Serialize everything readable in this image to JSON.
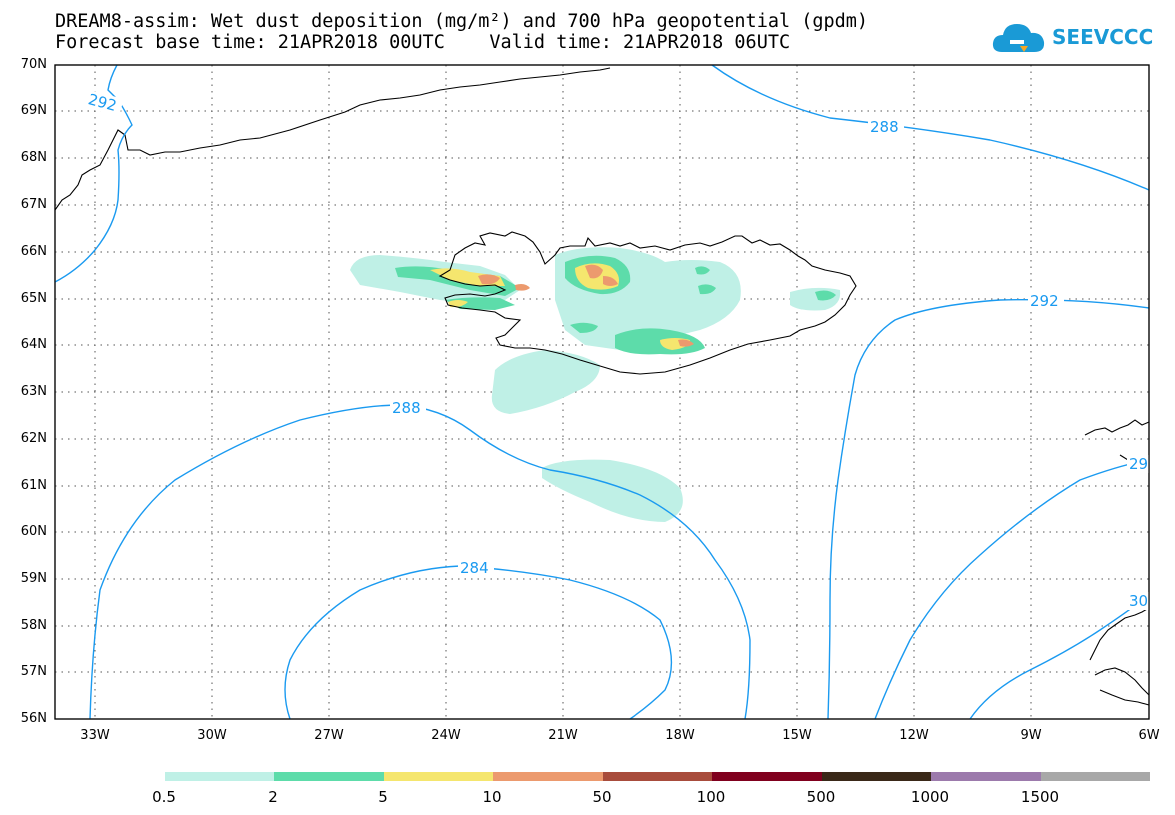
{
  "title_line1": "DREAM8-assim: Wet dust deposition (mg/m²) and 700 hPa geopotential (gpdm)",
  "title_line2": "Forecast base time: 21APR2018 00UTC    Valid time: 21APR2018 06UTC",
  "logo_text": "SEEVCCC",
  "logo_colors": {
    "primary": "#1a9ad6",
    "accent": "#f5a623"
  },
  "lat_labels": [
    "70N",
    "69N",
    "68N",
    "67N",
    "66N",
    "65N",
    "64N",
    "63N",
    "62N",
    "61N",
    "60N",
    "59N",
    "58N",
    "57N",
    "56N"
  ],
  "lon_labels": [
    "33W",
    "30W",
    "27W",
    "24W",
    "21W",
    "18W",
    "15W",
    "12W",
    "9W",
    "6W"
  ],
  "contour_labels": {
    "c292_nw": "292",
    "c288_ne": "288",
    "c292_e": "292",
    "c288_s": "288",
    "c284": "284",
    "c29_partial": "29",
    "c30_partial": "30"
  },
  "colorbar": {
    "labels": [
      "0.5",
      "2",
      "5",
      "10",
      "50",
      "100",
      "500",
      "1000",
      "1500"
    ],
    "colors": [
      "#bff0e6",
      "#5ddcaa",
      "#f5e66e",
      "#ec9a6e",
      "#a84c3c",
      "#80001e",
      "#3a2818",
      "#9c7aac",
      "#a8a8a8"
    ]
  },
  "contour_color": "#1a9af0"
}
